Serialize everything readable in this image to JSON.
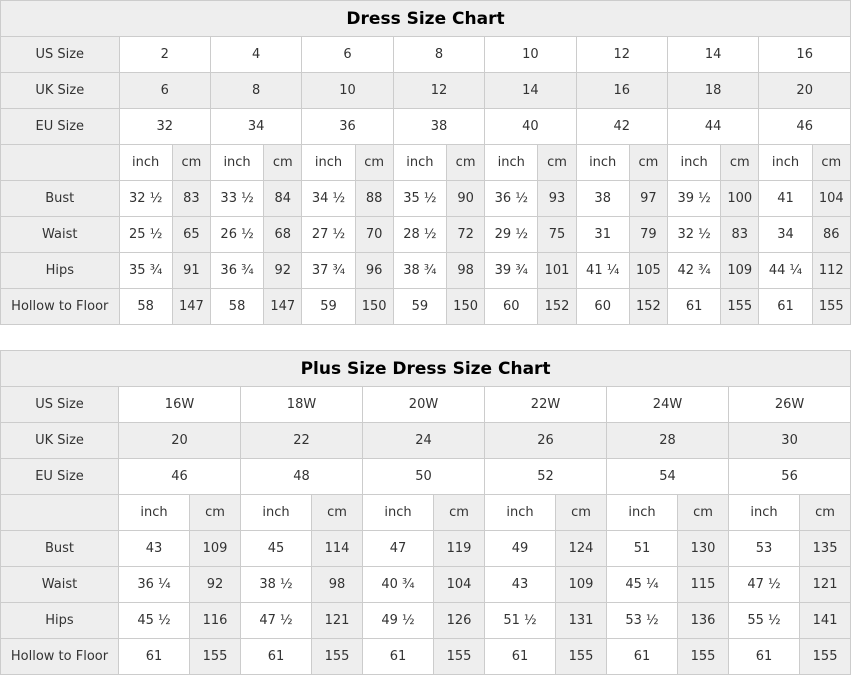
{
  "colors": {
    "shaded_bg": "#eeeeee",
    "cell_bg": "#ffffff",
    "border": "#cccccc",
    "text": "#333333",
    "title_text": "#000000"
  },
  "chart_data": [
    {
      "type": "table",
      "title": "Dress Size Chart",
      "size_rows": [
        {
          "label": "US Size",
          "shaded": false,
          "values": [
            "2",
            "4",
            "6",
            "8",
            "10",
            "12",
            "14",
            "16"
          ]
        },
        {
          "label": "UK Size",
          "shaded": true,
          "values": [
            "6",
            "8",
            "10",
            "12",
            "14",
            "16",
            "18",
            "20"
          ]
        },
        {
          "label": "EU Size",
          "shaded": false,
          "values": [
            "32",
            "34",
            "36",
            "38",
            "40",
            "42",
            "44",
            "46"
          ]
        }
      ],
      "unit_header": {
        "inch": "inch",
        "cm": "cm"
      },
      "measure_rows": [
        {
          "label": "Bust",
          "pairs": [
            [
              "32 ½",
              "83"
            ],
            [
              "33 ½",
              "84"
            ],
            [
              "34 ½",
              "88"
            ],
            [
              "35 ½",
              "90"
            ],
            [
              "36 ½",
              "93"
            ],
            [
              "38",
              "97"
            ],
            [
              "39 ½",
              "100"
            ],
            [
              "41",
              "104"
            ]
          ]
        },
        {
          "label": "Waist",
          "pairs": [
            [
              "25 ½",
              "65"
            ],
            [
              "26 ½",
              "68"
            ],
            [
              "27 ½",
              "70"
            ],
            [
              "28 ½",
              "72"
            ],
            [
              "29 ½",
              "75"
            ],
            [
              "31",
              "79"
            ],
            [
              "32 ½",
              "83"
            ],
            [
              "34",
              "86"
            ]
          ]
        },
        {
          "label": "Hips",
          "pairs": [
            [
              "35 ¾",
              "91"
            ],
            [
              "36 ¾",
              "92"
            ],
            [
              "37 ¾",
              "96"
            ],
            [
              "38 ¾",
              "98"
            ],
            [
              "39 ¾",
              "101"
            ],
            [
              "41 ¼",
              "105"
            ],
            [
              "42 ¾",
              "109"
            ],
            [
              "44 ¼",
              "112"
            ]
          ]
        },
        {
          "label": "Hollow to Floor",
          "pairs": [
            [
              "58",
              "147"
            ],
            [
              "58",
              "147"
            ],
            [
              "59",
              "150"
            ],
            [
              "59",
              "150"
            ],
            [
              "60",
              "152"
            ],
            [
              "60",
              "152"
            ],
            [
              "61",
              "155"
            ],
            [
              "61",
              "155"
            ]
          ]
        }
      ]
    },
    {
      "type": "table",
      "title": "Plus Size Dress Size Chart",
      "size_rows": [
        {
          "label": "US Size",
          "shaded": false,
          "values": [
            "16W",
            "18W",
            "20W",
            "22W",
            "24W",
            "26W"
          ]
        },
        {
          "label": "UK Size",
          "shaded": true,
          "values": [
            "20",
            "22",
            "24",
            "26",
            "28",
            "30"
          ]
        },
        {
          "label": "EU Size",
          "shaded": false,
          "values": [
            "46",
            "48",
            "50",
            "52",
            "54",
            "56"
          ]
        }
      ],
      "unit_header": {
        "inch": "inch",
        "cm": "cm"
      },
      "measure_rows": [
        {
          "label": "Bust",
          "pairs": [
            [
              "43",
              "109"
            ],
            [
              "45",
              "114"
            ],
            [
              "47",
              "119"
            ],
            [
              "49",
              "124"
            ],
            [
              "51",
              "130"
            ],
            [
              "53",
              "135"
            ]
          ]
        },
        {
          "label": "Waist",
          "pairs": [
            [
              "36 ¼",
              "92"
            ],
            [
              "38 ½",
              "98"
            ],
            [
              "40 ¾",
              "104"
            ],
            [
              "43",
              "109"
            ],
            [
              "45 ¼",
              "115"
            ],
            [
              "47 ½",
              "121"
            ]
          ]
        },
        {
          "label": "Hips",
          "pairs": [
            [
              "45 ½",
              "116"
            ],
            [
              "47 ½",
              "121"
            ],
            [
              "49 ½",
              "126"
            ],
            [
              "51 ½",
              "131"
            ],
            [
              "53 ½",
              "136"
            ],
            [
              "55 ½",
              "141"
            ]
          ]
        },
        {
          "label": "Hollow to Floor",
          "pairs": [
            [
              "61",
              "155"
            ],
            [
              "61",
              "155"
            ],
            [
              "61",
              "155"
            ],
            [
              "61",
              "155"
            ],
            [
              "61",
              "155"
            ],
            [
              "61",
              "155"
            ]
          ]
        }
      ]
    }
  ]
}
